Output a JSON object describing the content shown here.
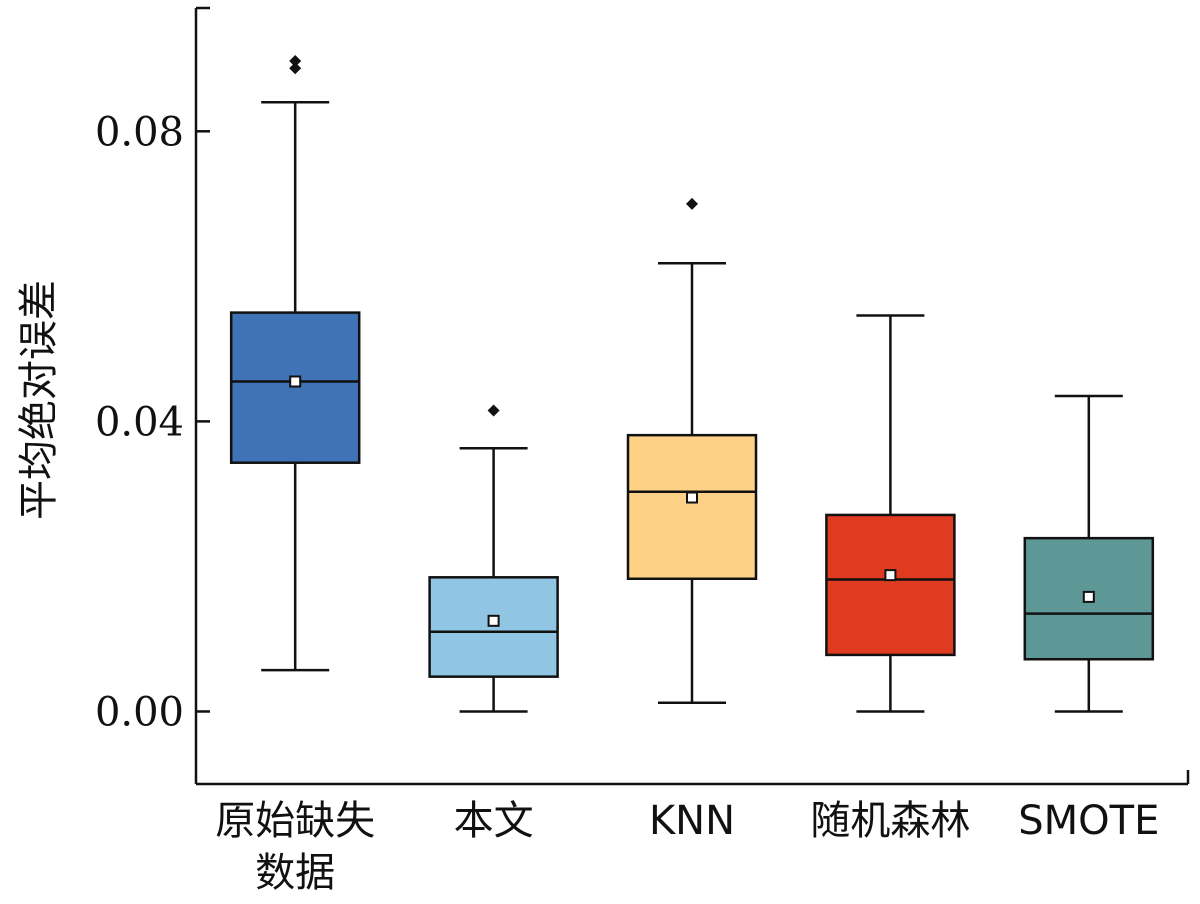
{
  "chart_data": {
    "type": "box",
    "title": "",
    "xlabel": "",
    "ylabel": "平均绝对误差",
    "ylim": [
      -0.01,
      0.097
    ],
    "yticks": [
      0.0,
      0.04,
      0.08
    ],
    "ytick_labels": [
      "0.00",
      "0.04",
      "0.08"
    ],
    "grid": false,
    "legend": "none",
    "categories": [
      {
        "label_lines": [
          "原始缺失",
          "数据"
        ],
        "color": "#3F73B6",
        "whisker_low": 0.0057,
        "q1": 0.0343,
        "median": 0.0455,
        "mean": 0.0455,
        "q3": 0.055,
        "whisker_high": 0.084,
        "outliers": [
          0.0887,
          0.0897
        ]
      },
      {
        "label_lines": [
          "本文"
        ],
        "color": "#90C5E3",
        "whisker_low": 0.0,
        "q1": 0.0048,
        "median": 0.011,
        "mean": 0.0125,
        "q3": 0.0185,
        "whisker_high": 0.0363,
        "outliers": [
          0.0415
        ]
      },
      {
        "label_lines": [
          "KNN"
        ],
        "color": "#FDD286",
        "whisker_low": 0.0012,
        "q1": 0.0183,
        "median": 0.0303,
        "mean": 0.0295,
        "q3": 0.0381,
        "whisker_high": 0.0618,
        "outliers": [
          0.07
        ]
      },
      {
        "label_lines": [
          "随机森林"
        ],
        "color": "#DE3B20",
        "whisker_low": 0.0,
        "q1": 0.0078,
        "median": 0.0182,
        "mean": 0.0188,
        "q3": 0.0271,
        "whisker_high": 0.0546,
        "outliers": []
      },
      {
        "label_lines": [
          "SMOTE"
        ],
        "color": "#5E9896",
        "whisker_low": 0.0,
        "q1": 0.0072,
        "median": 0.0135,
        "mean": 0.0158,
        "q3": 0.0239,
        "whisker_high": 0.0435,
        "outliers": []
      }
    ]
  }
}
